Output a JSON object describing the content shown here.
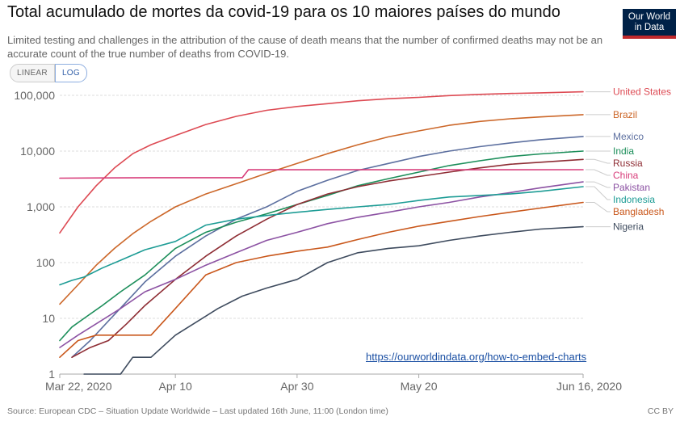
{
  "header": {
    "title": "Total acumulado de mortes da covid-19 para os 10 maiores países do mundo",
    "subtitle": "Limited testing and challenges in the attribution of the cause of death means that the number of confirmed deaths may not be an accurate count of the true number of deaths from COVID-19.",
    "logo_line1": "Our World",
    "logo_line2": "in Data"
  },
  "controls": {
    "linear_label": "LINEAR",
    "log_label": "LOG",
    "selected": "LOG"
  },
  "footer": {
    "source": "Source: European CDC – Situation Update Worldwide – Last updated 16th June, 11:00 (London time)",
    "license": "CC BY",
    "embed_link": "https://ourworldindata.org/how-to-embed-charts"
  },
  "colors": {
    "United States": "#dd4a53",
    "Brazil": "#cc6729",
    "Mexico": "#5c6f9f",
    "India": "#1c8e5a",
    "Russia": "#8e2d34",
    "China": "#d83e7b",
    "Pakistan": "#8c52a3",
    "Indonesia": "#1d9c95",
    "Bangladesh": "#c9571b",
    "Nigeria": "#3e4b5e"
  },
  "chart_data": {
    "type": "line",
    "log_scale": true,
    "x_tick_labels": [
      "Mar 22, 2020",
      "Apr 10",
      "Apr 30",
      "May 20",
      "Jun 16, 2020"
    ],
    "x_ticks": [
      0,
      19,
      39,
      59,
      86
    ],
    "x_range": [
      0,
      86
    ],
    "y_ticks": [
      1,
      10,
      100,
      1000,
      10000,
      100000
    ],
    "y_tick_labels": [
      "1",
      "10",
      "100",
      "1,000",
      "10,000",
      "100,000"
    ],
    "ylim": [
      1,
      150000
    ],
    "grid": "horizontal dashed",
    "legend": "right, end labels",
    "series": [
      {
        "name": "United States",
        "x": [
          0,
          3,
          6,
          9,
          12,
          15,
          19,
          24,
          29,
          34,
          39,
          44,
          49,
          54,
          59,
          64,
          69,
          74,
          79,
          86
        ],
        "values": [
          340,
          1000,
          2400,
          5000,
          9000,
          13000,
          19000,
          30000,
          42000,
          54000,
          63000,
          71000,
          80000,
          87000,
          92000,
          99000,
          104000,
          108000,
          111000,
          116000
        ]
      },
      {
        "name": "Brazil",
        "x": [
          0,
          3,
          6,
          9,
          12,
          15,
          19,
          24,
          29,
          34,
          39,
          44,
          49,
          54,
          59,
          64,
          69,
          74,
          79,
          86
        ],
        "values": [
          18,
          40,
          90,
          180,
          330,
          550,
          1000,
          1700,
          2600,
          4000,
          6000,
          9000,
          13000,
          18000,
          23000,
          29000,
          34000,
          38000,
          41000,
          45000
        ]
      },
      {
        "name": "Mexico",
        "x": [
          2,
          5,
          8,
          11,
          14,
          19,
          24,
          29,
          34,
          39,
          44,
          49,
          54,
          59,
          64,
          69,
          74,
          79,
          86
        ],
        "values": [
          2,
          4,
          9,
          20,
          45,
          130,
          300,
          600,
          1000,
          1900,
          3000,
          4500,
          6000,
          8000,
          10000,
          12000,
          14000,
          16000,
          18300
        ]
      },
      {
        "name": "India",
        "x": [
          0,
          2,
          4,
          7,
          10,
          14,
          19,
          24,
          29,
          34,
          39,
          44,
          49,
          54,
          59,
          64,
          69,
          74,
          79,
          86
        ],
        "values": [
          4,
          7,
          10,
          17,
          30,
          60,
          180,
          350,
          530,
          750,
          1100,
          1600,
          2400,
          3200,
          4200,
          5500,
          6700,
          8000,
          8900,
          10000
        ]
      },
      {
        "name": "Russia",
        "x": [
          2,
          5,
          8,
          11,
          14,
          19,
          24,
          29,
          34,
          39,
          44,
          49,
          54,
          59,
          64,
          69,
          74,
          79,
          86
        ],
        "values": [
          2,
          3,
          4,
          8,
          17,
          50,
          130,
          300,
          600,
          1100,
          1700,
          2300,
          2900,
          3500,
          4200,
          5000,
          5800,
          6300,
          7100
        ]
      },
      {
        "name": "China",
        "x": [
          0,
          15,
          30,
          31,
          86
        ],
        "values": [
          3270,
          3340,
          3340,
          4630,
          4634
        ]
      },
      {
        "name": "Pakistan",
        "x": [
          0,
          3,
          6,
          10,
          14,
          19,
          24,
          29,
          34,
          39,
          44,
          49,
          54,
          59,
          64,
          69,
          74,
          79,
          86
        ],
        "values": [
          3,
          5,
          8,
          15,
          30,
          50,
          90,
          150,
          250,
          350,
          500,
          650,
          800,
          1000,
          1200,
          1500,
          1800,
          2200,
          2800
        ]
      },
      {
        "name": "Indonesia",
        "x": [
          0,
          2,
          4,
          7,
          10,
          14,
          19,
          24,
          29,
          34,
          39,
          44,
          49,
          54,
          59,
          64,
          69,
          74,
          79,
          86
        ],
        "values": [
          40,
          48,
          55,
          80,
          110,
          170,
          240,
          470,
          600,
          700,
          800,
          900,
          1000,
          1100,
          1300,
          1500,
          1600,
          1700,
          1900,
          2300
        ]
      },
      {
        "name": "Bangladesh",
        "x": [
          0,
          3,
          6,
          9,
          12,
          15,
          19,
          24,
          29,
          34,
          39,
          44,
          49,
          54,
          59,
          64,
          69,
          74,
          79,
          86
        ],
        "values": [
          2,
          4,
          5,
          5,
          5,
          5,
          15,
          60,
          100,
          130,
          160,
          190,
          260,
          350,
          450,
          550,
          670,
          800,
          950,
          1200
        ]
      },
      {
        "name": "Nigeria",
        "x": [
          4,
          10,
          12,
          15,
          19,
          22,
          26,
          30,
          34,
          39,
          44,
          49,
          54,
          59,
          64,
          69,
          74,
          79,
          86
        ],
        "values": [
          1,
          1,
          2,
          2,
          5,
          8,
          15,
          25,
          35,
          50,
          100,
          150,
          180,
          200,
          250,
          300,
          350,
          400,
          440
        ]
      }
    ]
  }
}
